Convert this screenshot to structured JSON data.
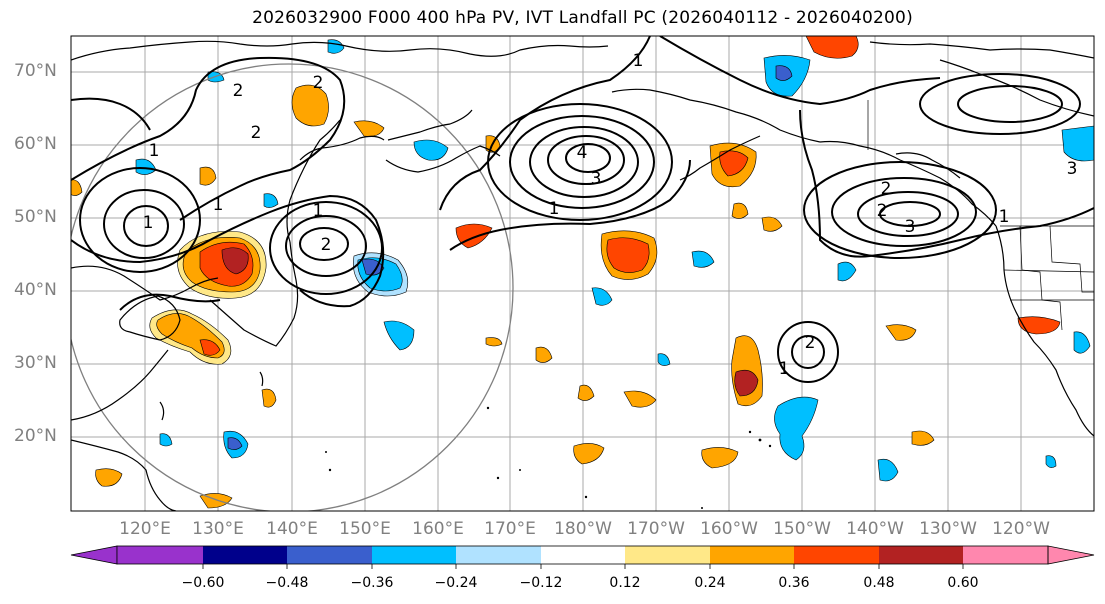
{
  "title": "2026032900 F000 400 hPa PV, IVT Landfall PC (2026040112 - 2026040200)",
  "map": {
    "lat_labels": [
      "70°N",
      "60°N",
      "50°N",
      "40°N",
      "30°N",
      "20°N"
    ],
    "lon_labels": [
      "120°E",
      "130°E",
      "140°E",
      "150°E",
      "160°E",
      "170°E",
      "180°W",
      "170°W",
      "160°W",
      "150°W",
      "140°W",
      "130°W",
      "120°W"
    ],
    "contour_labels": [
      "2",
      "2",
      "2",
      "1",
      "1",
      "1",
      "1",
      "2",
      "4",
      "3",
      "1",
      "2",
      "2",
      "1",
      "3",
      "1",
      "1",
      "3",
      "2"
    ]
  },
  "colorbar": {
    "tick_labels": [
      "−0.60",
      "−0.48",
      "−0.36",
      "−0.24",
      "−0.12",
      "0.12",
      "0.24",
      "0.36",
      "0.48",
      "0.60"
    ],
    "colors": [
      "#9932cc",
      "#00008b",
      "#3a5fcd",
      "#00bfff",
      "#b0e2ff",
      "#ffffff",
      "#ffe888",
      "#ffa500",
      "#ff4500",
      "#b22222",
      "#ff87ae"
    ]
  }
}
